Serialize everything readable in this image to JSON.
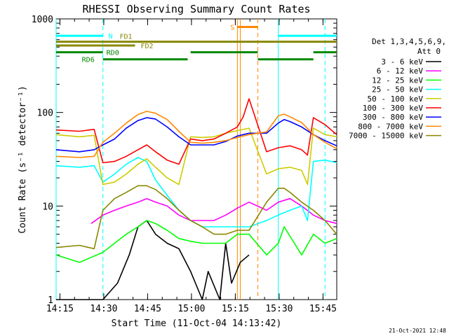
{
  "chart_data": {
    "type": "line",
    "title": "RHESSI Observing Summary Count Rates",
    "xlabel": "Start Time (11-Oct-04 14:13:42)",
    "ylabel": "Count Rate (s⁻¹ detector⁻¹)",
    "ylog": true,
    "ylim": [
      1,
      1000
    ],
    "xlim_minutes": [
      0,
      96
    ],
    "xticks": [
      {
        "label": "14:15",
        "minutes": 1.3
      },
      {
        "label": "14:30",
        "minutes": 16.3
      },
      {
        "label": "14:45",
        "minutes": 31.3
      },
      {
        "label": "15:00",
        "minutes": 46.3
      },
      {
        "label": "15:15",
        "minutes": 61.3
      },
      {
        "label": "15:30",
        "minutes": 76.3
      },
      {
        "label": "15:45",
        "minutes": 91.3
      }
    ],
    "yticks": [
      {
        "label": "1",
        "value": 1
      },
      {
        "label": "10",
        "value": 10
      },
      {
        "label": "100",
        "value": 100
      },
      {
        "label": "1000",
        "value": 1000
      }
    ],
    "legend_title": "Det 1,3,4,5,6,9,",
    "legend_subtitle": "Att 0",
    "legend_position": "right",
    "series": [
      {
        "name": "3 - 6 keV",
        "color": "#000000",
        "data": [
          [
            0,
            1
          ],
          [
            8,
            1
          ],
          [
            16,
            1
          ],
          [
            21,
            1.5
          ],
          [
            25,
            3
          ],
          [
            28,
            6
          ],
          [
            31,
            7
          ],
          [
            34,
            5
          ],
          [
            38,
            4
          ],
          [
            42,
            3.5
          ],
          [
            46,
            2
          ],
          [
            50,
            1
          ],
          [
            52,
            2
          ],
          [
            56,
            1
          ],
          [
            58,
            4
          ],
          [
            60,
            1.5
          ],
          [
            63,
            2.5
          ],
          [
            66,
            3
          ]
        ]
      },
      {
        "name": "6 - 12 keV",
        "color": "#ff00ff",
        "data": [
          [
            12,
            6.5
          ],
          [
            16,
            8
          ],
          [
            20,
            9
          ],
          [
            24,
            10
          ],
          [
            28,
            11
          ],
          [
            31,
            12
          ],
          [
            34,
            11
          ],
          [
            38,
            10
          ],
          [
            42,
            8
          ],
          [
            46,
            7
          ],
          [
            50,
            7
          ],
          [
            54,
            7
          ],
          [
            58,
            8
          ],
          [
            62,
            9.5
          ],
          [
            66,
            11
          ],
          [
            72,
            9
          ],
          [
            76,
            11
          ],
          [
            80,
            12
          ],
          [
            84,
            10
          ],
          [
            88,
            8
          ],
          [
            92,
            7
          ],
          [
            96,
            6.5
          ]
        ]
      },
      {
        "name": "12 - 25 keV",
        "color": "#00ff00",
        "data": [
          [
            0,
            3
          ],
          [
            8,
            2.5
          ],
          [
            16,
            3.2
          ],
          [
            20,
            4
          ],
          [
            24,
            5
          ],
          [
            28,
            6
          ],
          [
            31,
            7
          ],
          [
            34,
            6.5
          ],
          [
            38,
            5.5
          ],
          [
            42,
            4.5
          ],
          [
            46,
            4.2
          ],
          [
            50,
            4
          ],
          [
            54,
            4
          ],
          [
            58,
            4
          ],
          [
            62,
            5
          ],
          [
            66,
            5
          ],
          [
            72,
            3
          ],
          [
            76,
            4
          ],
          [
            78,
            6
          ],
          [
            84,
            3
          ],
          [
            88,
            5
          ],
          [
            92,
            4
          ],
          [
            96,
            4.5
          ]
        ]
      },
      {
        "name": "25 - 50 keV",
        "color": "#00ffff",
        "data": [
          [
            0,
            27
          ],
          [
            8,
            26
          ],
          [
            13,
            27
          ],
          [
            16,
            18
          ],
          [
            20,
            22
          ],
          [
            24,
            28
          ],
          [
            28,
            33
          ],
          [
            31,
            30
          ],
          [
            34,
            19
          ],
          [
            38,
            13
          ],
          [
            42,
            9
          ],
          [
            46,
            7
          ],
          [
            50,
            6
          ],
          [
            54,
            6
          ],
          [
            58,
            6
          ],
          [
            62,
            6
          ],
          [
            66,
            6
          ],
          [
            72,
            7
          ],
          [
            76,
            8
          ],
          [
            80,
            9
          ],
          [
            84,
            10
          ],
          [
            86,
            7
          ],
          [
            88,
            30
          ],
          [
            92,
            31
          ],
          [
            96,
            29
          ]
        ]
      },
      {
        "name": "50 - 100 keV",
        "color": "#cccc00",
        "data": [
          [
            0,
            58
          ],
          [
            8,
            55
          ],
          [
            13,
            57
          ],
          [
            16,
            17
          ],
          [
            20,
            18
          ],
          [
            24,
            22
          ],
          [
            28,
            28
          ],
          [
            31,
            32
          ],
          [
            34,
            26
          ],
          [
            38,
            20
          ],
          [
            42,
            17
          ],
          [
            46,
            55
          ],
          [
            50,
            54
          ],
          [
            54,
            55
          ],
          [
            58,
            60
          ],
          [
            62,
            64
          ],
          [
            66,
            68
          ],
          [
            72,
            22
          ],
          [
            76,
            25
          ],
          [
            80,
            26
          ],
          [
            84,
            24
          ],
          [
            86,
            17
          ],
          [
            88,
            68
          ],
          [
            92,
            58
          ],
          [
            96,
            55
          ]
        ]
      },
      {
        "name": "100 - 300 keV",
        "color": "#ff0000",
        "data": [
          [
            0,
            65
          ],
          [
            8,
            63
          ],
          [
            13,
            66
          ],
          [
            16,
            29
          ],
          [
            20,
            30
          ],
          [
            24,
            34
          ],
          [
            28,
            40
          ],
          [
            31,
            45
          ],
          [
            34,
            38
          ],
          [
            38,
            31
          ],
          [
            42,
            28
          ],
          [
            46,
            52
          ],
          [
            50,
            50
          ],
          [
            54,
            52
          ],
          [
            58,
            60
          ],
          [
            62,
            70
          ],
          [
            64,
            90
          ],
          [
            66,
            140
          ],
          [
            72,
            38
          ],
          [
            76,
            42
          ],
          [
            80,
            44
          ],
          [
            84,
            40
          ],
          [
            86,
            35
          ],
          [
            88,
            88
          ],
          [
            92,
            74
          ],
          [
            96,
            58
          ]
        ]
      },
      {
        "name": "300 - 800 keV",
        "color": "#0000ff",
        "data": [
          [
            0,
            40
          ],
          [
            8,
            38
          ],
          [
            13,
            40
          ],
          [
            16,
            45
          ],
          [
            20,
            52
          ],
          [
            24,
            68
          ],
          [
            28,
            82
          ],
          [
            31,
            88
          ],
          [
            34,
            85
          ],
          [
            38,
            70
          ],
          [
            42,
            55
          ],
          [
            46,
            45
          ],
          [
            50,
            45
          ],
          [
            54,
            45
          ],
          [
            58,
            49
          ],
          [
            62,
            56
          ],
          [
            66,
            60
          ],
          [
            72,
            60
          ],
          [
            76,
            77
          ],
          [
            78,
            84
          ],
          [
            80,
            80
          ],
          [
            84,
            70
          ],
          [
            88,
            58
          ],
          [
            92,
            50
          ],
          [
            96,
            44
          ]
        ]
      },
      {
        "name": "800 - 7000 keV",
        "color": "#ff8800",
        "data": [
          [
            0,
            34
          ],
          [
            8,
            33
          ],
          [
            13,
            34
          ],
          [
            16,
            48
          ],
          [
            20,
            60
          ],
          [
            24,
            77
          ],
          [
            28,
            95
          ],
          [
            31,
            103
          ],
          [
            34,
            98
          ],
          [
            38,
            84
          ],
          [
            42,
            63
          ],
          [
            46,
            48
          ],
          [
            50,
            47
          ],
          [
            54,
            48
          ],
          [
            58,
            50
          ],
          [
            62,
            54
          ],
          [
            66,
            58
          ],
          [
            72,
            62
          ],
          [
            76,
            92
          ],
          [
            78,
            96
          ],
          [
            80,
            90
          ],
          [
            84,
            78
          ],
          [
            88,
            58
          ],
          [
            92,
            48
          ],
          [
            96,
            41
          ]
        ]
      },
      {
        "name": "7000 - 15000 keV",
        "color": "#888800",
        "data": [
          [
            0,
            3.6
          ],
          [
            8,
            3.8
          ],
          [
            13,
            3.5
          ],
          [
            16,
            9
          ],
          [
            20,
            12
          ],
          [
            24,
            14
          ],
          [
            28,
            16.5
          ],
          [
            31,
            16.5
          ],
          [
            34,
            15
          ],
          [
            38,
            12
          ],
          [
            42,
            9
          ],
          [
            46,
            7
          ],
          [
            50,
            6
          ],
          [
            54,
            5
          ],
          [
            58,
            5
          ],
          [
            62,
            5.5
          ],
          [
            66,
            5.5
          ],
          [
            72,
            11
          ],
          [
            76,
            15.5
          ],
          [
            78,
            15.5
          ],
          [
            80,
            14
          ],
          [
            84,
            11
          ],
          [
            88,
            9
          ],
          [
            92,
            7
          ],
          [
            96,
            5
          ]
        ]
      }
    ],
    "state_bars": [
      {
        "label": "N",
        "color": "#00ffff",
        "value": 660,
        "segments": [
          [
            0,
            16
          ],
          [
            76,
            96
          ]
        ]
      },
      {
        "label": "S",
        "color": "#ff8800",
        "value": 820,
        "segments": [
          [
            62,
            69
          ]
        ]
      },
      {
        "label": "FD1",
        "color": "#888800",
        "value": 570,
        "segments": [
          [
            0,
            27
          ],
          [
            27,
            96
          ]
        ]
      },
      {
        "label": "FD2",
        "color": "#888800",
        "value": 520,
        "segments": [
          [
            0,
            27
          ]
        ]
      },
      {
        "label": "RD0",
        "color": "#008800",
        "value": 440,
        "segments": [
          [
            0,
            16
          ],
          [
            46,
            69
          ],
          [
            88,
            96
          ]
        ]
      },
      {
        "label": "RD6",
        "color": "#008800",
        "value": 370,
        "segments": [
          [
            16,
            45
          ],
          [
            69,
            88
          ]
        ]
      }
    ],
    "vlines": [
      {
        "minutes": 0,
        "color": "#00ffff",
        "style": "solid"
      },
      {
        "minutes": 16,
        "color": "#00ffff",
        "style": "dashed"
      },
      {
        "minutes": 62,
        "color": "#ff8800",
        "style": "solid"
      },
      {
        "minutes": 63,
        "color": "#ff8800",
        "style": "solid"
      },
      {
        "minutes": 69,
        "color": "#ff8800",
        "style": "dashed"
      },
      {
        "minutes": 76,
        "color": "#00ffff",
        "style": "solid"
      },
      {
        "minutes": 92,
        "color": "#00ffff",
        "style": "dashed"
      }
    ],
    "timestamp": "21-Oct-2021 12:48"
  }
}
